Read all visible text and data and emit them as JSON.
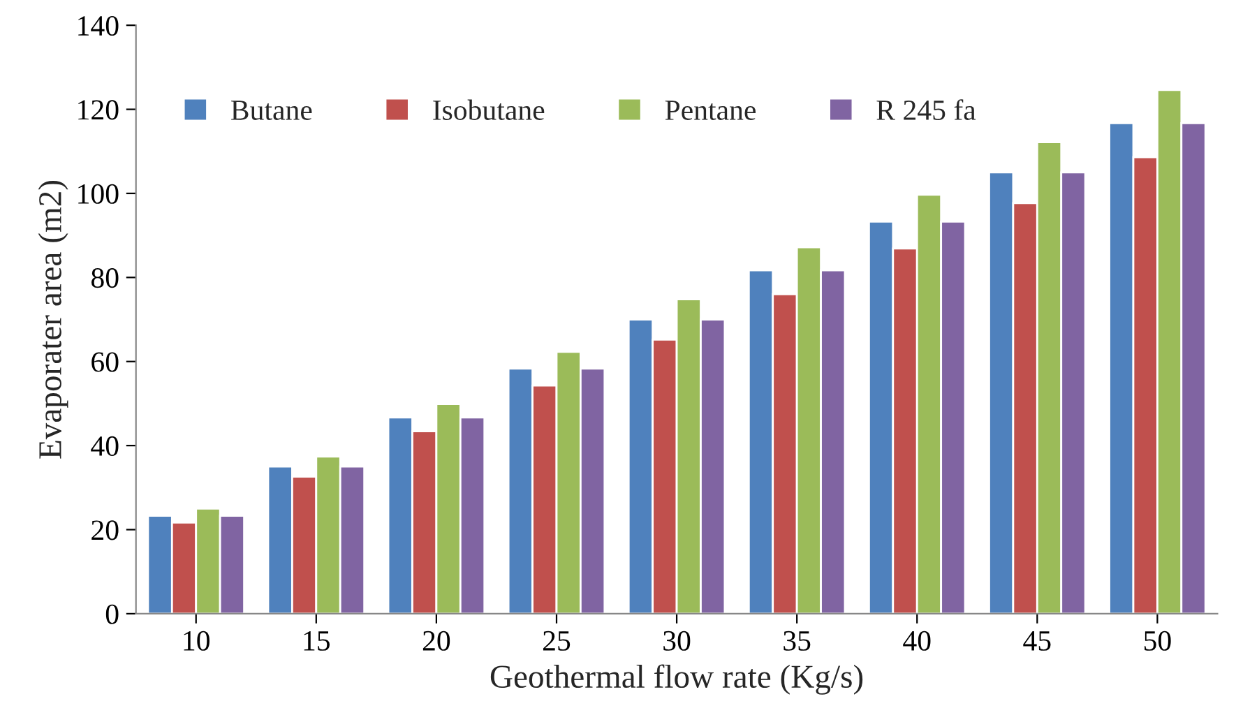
{
  "chart_data": {
    "type": "bar",
    "xlabel": "Geothermal flow rate (Kg/s)",
    "ylabel": "Evaporater area (m2)",
    "categories": [
      "10",
      "15",
      "20",
      "25",
      "30",
      "35",
      "40",
      "45",
      "50"
    ],
    "series": [
      {
        "name": "Butane",
        "color": "#4f81bd",
        "values": [
          23.3,
          35,
          46.7,
          58.3,
          70,
          81.7,
          93.3,
          105,
          116.7
        ]
      },
      {
        "name": "Isobutane",
        "color": "#c0504d",
        "values": [
          21.7,
          32.6,
          43.4,
          54.3,
          65.2,
          76,
          86.9,
          97.7,
          108.6
        ]
      },
      {
        "name": "Pentane",
        "color": "#9bbb59",
        "values": [
          25,
          37.4,
          49.9,
          62.3,
          74.8,
          87.2,
          99.7,
          112.2,
          124.6
        ]
      },
      {
        "name": "R 245 fa",
        "color": "#8064a2",
        "values": [
          23.3,
          35,
          46.7,
          58.3,
          70,
          81.7,
          93.3,
          105,
          116.7
        ]
      }
    ],
    "ylim": [
      0,
      140
    ],
    "yticks": [
      0,
      20,
      40,
      60,
      80,
      100,
      120,
      140
    ],
    "grid": false,
    "legend": "top left"
  }
}
